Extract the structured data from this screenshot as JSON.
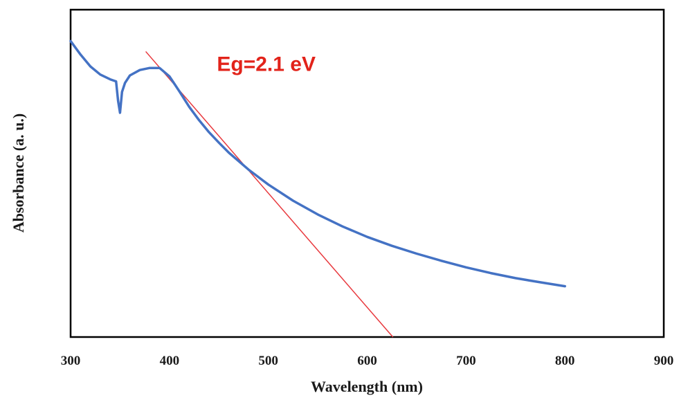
{
  "chart_data": {
    "type": "line",
    "title": "",
    "xlabel": "Wavelength (nm)",
    "ylabel": "Absorbance (a. u.)",
    "xlim": [
      300,
      900
    ],
    "ylim": [
      0,
      1
    ],
    "x_ticks": [
      "300",
      "400",
      "500",
      "600",
      "700",
      "800",
      "900"
    ],
    "y_ticks": [],
    "grid": false,
    "legend": "none",
    "series": [
      {
        "color": "#4472c4",
        "x": [
          300,
          310,
          320,
          330,
          340,
          346,
          348,
          350,
          352,
          355,
          360,
          370,
          380,
          390,
          400,
          410,
          420,
          430,
          440,
          450,
          460,
          480,
          500,
          525,
          550,
          575,
          600,
          625,
          650,
          675,
          700,
          725,
          750,
          775,
          800
        ],
        "y": [
          0.99,
          0.945,
          0.905,
          0.878,
          0.862,
          0.855,
          0.79,
          0.75,
          0.82,
          0.85,
          0.875,
          0.893,
          0.9,
          0.9,
          0.872,
          0.822,
          0.77,
          0.725,
          0.685,
          0.65,
          0.617,
          0.56,
          0.51,
          0.456,
          0.41,
          0.37,
          0.335,
          0.305,
          0.279,
          0.255,
          0.233,
          0.214,
          0.197,
          0.183,
          0.17
        ]
      }
    ],
    "tangent_line": {
      "color": "#e8383d",
      "x": [
        376,
        626
      ],
      "y": [
        0.955,
        0.0
      ]
    },
    "annotations": [
      {
        "text": "Eg=2.1 eV",
        "x": 448,
        "y": 0.89,
        "color": "#e2231a"
      }
    ]
  }
}
